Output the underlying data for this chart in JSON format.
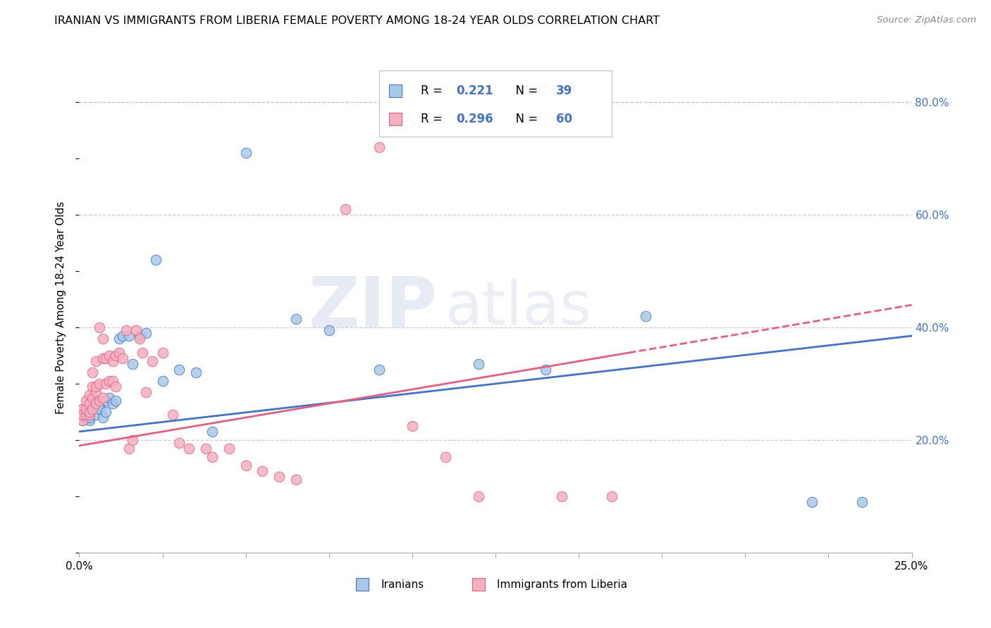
{
  "title": "IRANIAN VS IMMIGRANTS FROM LIBERIA FEMALE POVERTY AMONG 18-24 YEAR OLDS CORRELATION CHART",
  "source": "Source: ZipAtlas.com",
  "ylabel": "Female Poverty Among 18-24 Year Olds",
  "xlim": [
    0.0,
    0.25
  ],
  "ylim": [
    0.0,
    0.87
  ],
  "xtick_left_label": "0.0%",
  "xtick_right_label": "25.0%",
  "yticks_right": [
    0.2,
    0.4,
    0.6,
    0.8
  ],
  "ytick_right_labels": [
    "20.0%",
    "40.0%",
    "60.0%",
    "80.0%"
  ],
  "legend_r1": "0.221",
  "legend_n1": "39",
  "legend_r2": "0.296",
  "legend_n2": "60",
  "color_iranian_fill": "#a8c8e8",
  "color_iranian_edge": "#4472c4",
  "color_liberia_fill": "#f5b0c0",
  "color_liberia_edge": "#e06080",
  "color_line_iranian": "#4472c4",
  "color_line_liberia": "#e06080",
  "color_legend_blue": "#4472c4",
  "watermark_zip": "ZIP",
  "watermark_atlas": "atlas",
  "iranian_x": [
    0.001,
    0.001,
    0.002,
    0.002,
    0.003,
    0.003,
    0.003,
    0.004,
    0.004,
    0.005,
    0.005,
    0.006,
    0.006,
    0.007,
    0.008,
    0.008,
    0.009,
    0.01,
    0.011,
    0.012,
    0.013,
    0.015,
    0.016,
    0.018,
    0.02,
    0.023,
    0.025,
    0.03,
    0.035,
    0.04,
    0.05,
    0.065,
    0.075,
    0.09,
    0.12,
    0.14,
    0.17,
    0.22,
    0.235
  ],
  "iranian_y": [
    0.235,
    0.255,
    0.245,
    0.24,
    0.255,
    0.235,
    0.24,
    0.255,
    0.27,
    0.245,
    0.27,
    0.26,
    0.255,
    0.24,
    0.25,
    0.27,
    0.275,
    0.265,
    0.27,
    0.38,
    0.385,
    0.385,
    0.335,
    0.385,
    0.39,
    0.52,
    0.305,
    0.325,
    0.32,
    0.215,
    0.71,
    0.415,
    0.395,
    0.325,
    0.335,
    0.325,
    0.42,
    0.09,
    0.09
  ],
  "liberia_x": [
    0.001,
    0.001,
    0.001,
    0.002,
    0.002,
    0.002,
    0.003,
    0.003,
    0.003,
    0.003,
    0.004,
    0.004,
    0.004,
    0.004,
    0.005,
    0.005,
    0.005,
    0.005,
    0.006,
    0.006,
    0.006,
    0.007,
    0.007,
    0.007,
    0.008,
    0.008,
    0.009,
    0.009,
    0.01,
    0.01,
    0.011,
    0.011,
    0.012,
    0.013,
    0.014,
    0.015,
    0.016,
    0.017,
    0.018,
    0.019,
    0.02,
    0.022,
    0.025,
    0.028,
    0.03,
    0.033,
    0.038,
    0.04,
    0.045,
    0.05,
    0.055,
    0.06,
    0.065,
    0.08,
    0.09,
    0.1,
    0.11,
    0.12,
    0.145,
    0.16
  ],
  "liberia_y": [
    0.235,
    0.255,
    0.245,
    0.245,
    0.255,
    0.27,
    0.245,
    0.25,
    0.265,
    0.28,
    0.255,
    0.275,
    0.295,
    0.32,
    0.265,
    0.285,
    0.295,
    0.34,
    0.27,
    0.3,
    0.4,
    0.275,
    0.345,
    0.38,
    0.3,
    0.345,
    0.305,
    0.35,
    0.305,
    0.34,
    0.295,
    0.35,
    0.355,
    0.345,
    0.395,
    0.185,
    0.2,
    0.395,
    0.38,
    0.355,
    0.285,
    0.34,
    0.355,
    0.245,
    0.195,
    0.185,
    0.185,
    0.17,
    0.185,
    0.155,
    0.145,
    0.135,
    0.13,
    0.61,
    0.72,
    0.225,
    0.17,
    0.1,
    0.1,
    0.1
  ]
}
